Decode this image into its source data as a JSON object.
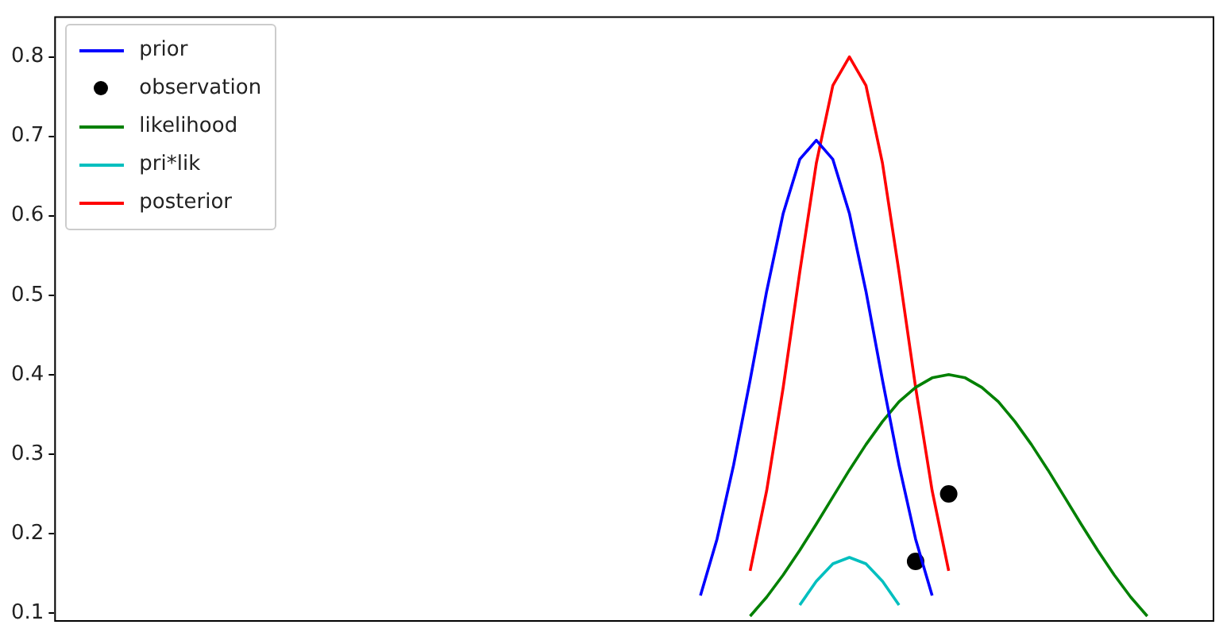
{
  "chart_data": {
    "type": "line",
    "ylim": [
      0.09,
      0.85
    ],
    "yticks": [
      0.1,
      0.2,
      0.3,
      0.4,
      0.5,
      0.6,
      0.7,
      0.8
    ],
    "tick_labels": "y",
    "legend": "top left",
    "marker": "none",
    "categories": [
      null,
      null,
      null,
      null,
      null,
      null,
      null,
      null,
      null,
      null,
      null,
      null,
      null,
      null,
      null,
      null,
      null,
      null,
      null,
      null,
      null,
      null,
      null,
      null,
      null,
      null,
      null,
      null,
      null,
      null,
      null,
      null,
      null,
      null,
      null,
      null,
      null,
      null,
      null,
      null,
      null,
      null,
      null,
      null,
      null,
      null,
      null,
      null,
      null,
      null,
      null,
      null,
      null,
      null,
      null,
      null,
      null,
      null,
      null,
      null,
      null,
      null,
      null,
      null,
      null,
      null,
      null,
      null,
      null,
      null,
      null
    ],
    "series": [
      {
        "name": "prior",
        "color": "#0000ff",
        "values": [
          null,
          null,
          null,
          null,
          null,
          null,
          null,
          null,
          null,
          null,
          null,
          null,
          null,
          null,
          null,
          null,
          null,
          null,
          null,
          null,
          null,
          null,
          null,
          null,
          null,
          null,
          null,
          null,
          null,
          null,
          null,
          null,
          null,
          null,
          null,
          null,
          null,
          null,
          null,
          0.122,
          0.193,
          0.286,
          0.393,
          0.505,
          0.603,
          0.671,
          0.695,
          0.671,
          0.603,
          0.505,
          0.393,
          0.286,
          0.193,
          0.122,
          null,
          null,
          null,
          null,
          null,
          null,
          null,
          null,
          null,
          null,
          null,
          null,
          null,
          null,
          null,
          null,
          null
        ]
      },
      {
        "name": "observation",
        "type": "scatter",
        "marker": "circle",
        "color": "#000000",
        "values": [
          null,
          null,
          null,
          null,
          null,
          null,
          null,
          null,
          null,
          null,
          null,
          null,
          null,
          null,
          null,
          null,
          null,
          null,
          null,
          null,
          null,
          null,
          null,
          null,
          null,
          null,
          null,
          null,
          null,
          null,
          null,
          null,
          null,
          null,
          null,
          null,
          null,
          null,
          null,
          null,
          null,
          null,
          null,
          null,
          null,
          null,
          null,
          null,
          null,
          null,
          null,
          null,
          0.165,
          null,
          0.25,
          null,
          null,
          null,
          null,
          null,
          null,
          null,
          null,
          null,
          null,
          null,
          null,
          null,
          null,
          null,
          null
        ]
      },
      {
        "name": "likelihood",
        "color": "#008000",
        "values": [
          null,
          null,
          null,
          null,
          null,
          null,
          null,
          null,
          null,
          null,
          null,
          null,
          null,
          null,
          null,
          null,
          null,
          null,
          null,
          null,
          null,
          null,
          null,
          null,
          null,
          null,
          null,
          null,
          null,
          null,
          null,
          null,
          null,
          null,
          null,
          null,
          null,
          null,
          null,
          null,
          null,
          null,
          0.096,
          0.12,
          0.148,
          0.179,
          0.212,
          0.246,
          0.28,
          0.312,
          0.341,
          0.366,
          0.384,
          0.396,
          0.4,
          0.396,
          0.384,
          0.366,
          0.341,
          0.312,
          0.28,
          0.246,
          0.212,
          0.179,
          0.148,
          0.12,
          0.096,
          null,
          null,
          null,
          null
        ]
      },
      {
        "name": "pri*lik",
        "color": "#00bfbf",
        "values": [
          null,
          null,
          null,
          null,
          null,
          null,
          null,
          null,
          null,
          null,
          null,
          null,
          null,
          null,
          null,
          null,
          null,
          null,
          null,
          null,
          null,
          null,
          null,
          null,
          null,
          null,
          null,
          null,
          null,
          null,
          null,
          null,
          null,
          null,
          null,
          null,
          null,
          null,
          null,
          null,
          null,
          null,
          null,
          null,
          null,
          0.11,
          0.14,
          0.162,
          0.17,
          0.162,
          0.14,
          0.11,
          null,
          null,
          null,
          null,
          null,
          null,
          null,
          null,
          null,
          null,
          null,
          null,
          null,
          null,
          null,
          null,
          null,
          null,
          null
        ]
      },
      {
        "name": "posterior",
        "color": "#ff0000",
        "values": [
          null,
          null,
          null,
          null,
          null,
          null,
          null,
          null,
          null,
          null,
          null,
          null,
          null,
          null,
          null,
          null,
          null,
          null,
          null,
          null,
          null,
          null,
          null,
          null,
          null,
          null,
          null,
          null,
          null,
          null,
          null,
          null,
          null,
          null,
          null,
          null,
          null,
          null,
          null,
          null,
          null,
          null,
          0.153,
          0.254,
          0.384,
          0.529,
          0.666,
          0.764,
          0.8,
          0.764,
          0.666,
          0.529,
          0.384,
          0.254,
          0.153,
          null,
          null,
          null,
          null,
          null,
          null,
          null,
          null,
          null,
          null,
          null,
          null,
          null,
          null,
          null,
          null
        ]
      }
    ]
  }
}
